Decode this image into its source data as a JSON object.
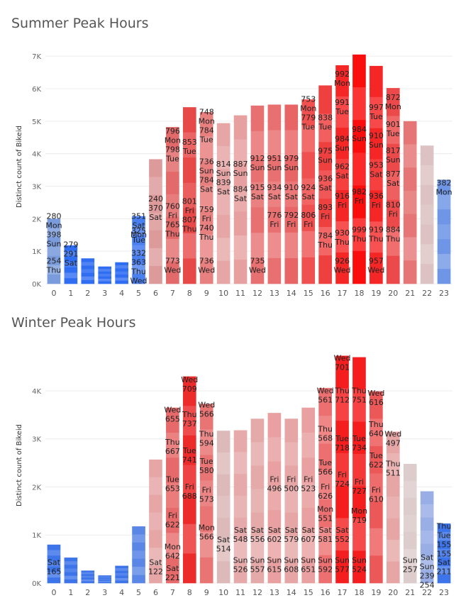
{
  "charts": [
    {
      "title": "Summer Peak Hours",
      "ylabel": "Distinct count of Bikeid",
      "yticks": [
        "0K",
        "1K",
        "2K",
        "3K",
        "4K",
        "5K",
        "6K",
        "7K"
      ],
      "ymax": 7200
    },
    {
      "title": "Winter Peak Hours",
      "ylabel": "Distinct count of Bikeid",
      "yticks": [
        "0K",
        "1K",
        "2K",
        "3K",
        "4K"
      ],
      "ymax": 4900
    }
  ],
  "chart_data": [
    {
      "type": "bar",
      "stacked": true,
      "title": "Summer Peak Hours",
      "xlabel": "",
      "ylabel": "Distinct count of Bikeid",
      "ylim": [
        0,
        7200
      ],
      "categories": [
        "0",
        "1",
        "2",
        "3",
        "4",
        "5",
        "6",
        "7",
        "8",
        "9",
        "10",
        "11",
        "12",
        "13",
        "14",
        "15",
        "16",
        "17",
        "18",
        "19",
        "20",
        "21",
        "22",
        "23"
      ],
      "values": [
        2000,
        1180,
        780,
        530,
        660,
        2080,
        3830,
        4820,
        5430,
        5280,
        4940,
        5180,
        5480,
        5510,
        5510,
        5670,
        6100,
        6720,
        7050,
        6700,
        6020,
        5000,
        4250,
        3200
      ],
      "colors": [
        "#7b9cdc",
        "#2f6df2",
        "#2f6df2",
        "#2f6df2",
        "#2f6df2",
        "#4a7ff0",
        "#dd9a9a",
        "#e36a6a",
        "#e74848",
        "#e88080",
        "#e6a6a6",
        "#e7a0a0",
        "#e77070",
        "#e87070",
        "#e86565",
        "#ef5050",
        "#ef4040",
        "#f52626",
        "#fa0d0d",
        "#f52626",
        "#ec4a4a",
        "#e67676",
        "#dcc2c2",
        "#6f96e6"
      ],
      "annotations": [
        {
          "x": "0",
          "lines": [
            "280",
            "Mon",
            "398",
            "Sun"
          ],
          "y": 2000
        },
        {
          "x": "0",
          "lines": [
            "254",
            "Thu"
          ],
          "y": 620
        },
        {
          "x": "1",
          "lines": [
            "279",
            "291",
            "Sat"
          ],
          "y": 1120
        },
        {
          "x": "5",
          "lines": [
            "351",
            "Sat",
            "Mon"
          ],
          "y": 2000
        },
        {
          "x": "5",
          "lines": [
            "325",
            "Tue"
          ],
          "y": 1550
        },
        {
          "x": "5",
          "lines": [
            "332",
            "363",
            "Thu",
            "Wed"
          ],
          "y": 860
        },
        {
          "x": "6",
          "lines": [
            "240",
            "370",
            "Sat"
          ],
          "y": 2530
        },
        {
          "x": "7",
          "lines": [
            "796",
            "Mon",
            "798",
            "Tue"
          ],
          "y": 4620
        },
        {
          "x": "7",
          "lines": [
            "760",
            "Fri",
            "765",
            "Thu"
          ],
          "y": 2300
        },
        {
          "x": "7",
          "lines": [
            "773",
            "Wed"
          ],
          "y": 620
        },
        {
          "x": "8",
          "lines": [
            "853",
            "Tue"
          ],
          "y": 4280
        },
        {
          "x": "8",
          "lines": [
            "801",
            "Fri",
            "807",
            "Thu"
          ],
          "y": 2460
        },
        {
          "x": "9",
          "lines": [
            "748",
            "Mon",
            "784",
            "Tue"
          ],
          "y": 5200
        },
        {
          "x": "9",
          "lines": [
            "736",
            "Sun",
            "784",
            "Sat"
          ],
          "y": 3680
        },
        {
          "x": "9",
          "lines": [
            "759",
            "Fri",
            "740",
            "Thu"
          ],
          "y": 2200
        },
        {
          "x": "9",
          "lines": [
            "736",
            "Wed"
          ],
          "y": 620
        },
        {
          "x": "10",
          "lines": [
            "814",
            "Sun",
            "839",
            "Sat"
          ],
          "y": 3600
        },
        {
          "x": "11",
          "lines": [
            "887",
            "Sun"
          ],
          "y": 3600
        },
        {
          "x": "11",
          "lines": [
            "884",
            "Sat"
          ],
          "y": 2830
        },
        {
          "x": "12",
          "lines": [
            "912",
            "Sun"
          ],
          "y": 3770
        },
        {
          "x": "12",
          "lines": [
            "915",
            "Sat"
          ],
          "y": 2880
        },
        {
          "x": "12",
          "lines": [
            "735",
            "Wed"
          ],
          "y": 620
        },
        {
          "x": "13",
          "lines": [
            "951",
            "Sun"
          ],
          "y": 3770
        },
        {
          "x": "13",
          "lines": [
            "934",
            "Sat"
          ],
          "y": 2880
        },
        {
          "x": "13",
          "lines": [
            "776",
            "Fri"
          ],
          "y": 2030
        },
        {
          "x": "14",
          "lines": [
            "979",
            "Sun"
          ],
          "y": 3770
        },
        {
          "x": "14",
          "lines": [
            "910",
            "Sat"
          ],
          "y": 2880
        },
        {
          "x": "14",
          "lines": [
            "792",
            "Fri"
          ],
          "y": 2030
        },
        {
          "x": "15",
          "lines": [
            "753",
            "Mon",
            "779",
            "Tue"
          ],
          "y": 5600
        },
        {
          "x": "15",
          "lines": [
            "924",
            "Sat"
          ],
          "y": 2880
        },
        {
          "x": "15",
          "lines": [
            "806",
            "Fri"
          ],
          "y": 2030
        },
        {
          "x": "16",
          "lines": [
            "838",
            "Tue"
          ],
          "y": 5030
        },
        {
          "x": "16",
          "lines": [
            "975",
            "Sun"
          ],
          "y": 4000
        },
        {
          "x": "16",
          "lines": [
            "936",
            "Sat"
          ],
          "y": 3150
        },
        {
          "x": "16",
          "lines": [
            "893",
            "Fri"
          ],
          "y": 2270
        },
        {
          "x": "16",
          "lines": [
            "784",
            "Thu"
          ],
          "y": 1400
        },
        {
          "x": "17",
          "lines": [
            "992",
            "Mon"
          ],
          "y": 6370
        },
        {
          "x": "17",
          "lines": [
            "991",
            "Tue"
          ],
          "y": 5500
        },
        {
          "x": "17",
          "lines": [
            "984",
            "Sun"
          ],
          "y": 4370
        },
        {
          "x": "17",
          "lines": [
            "962",
            "Sat"
          ],
          "y": 3520
        },
        {
          "x": "17",
          "lines": [
            "916",
            "Fri"
          ],
          "y": 2620
        },
        {
          "x": "17",
          "lines": [
            "930",
            "Thu"
          ],
          "y": 1480
        },
        {
          "x": "17",
          "lines": [
            "926",
            "Wed"
          ],
          "y": 620
        },
        {
          "x": "18",
          "lines": [
            "984",
            "Sun"
          ],
          "y": 4670
        },
        {
          "x": "18",
          "lines": [
            "982",
            "Fri"
          ],
          "y": 2750
        },
        {
          "x": "18",
          "lines": [
            "999",
            "Thu"
          ],
          "y": 1580
        },
        {
          "x": "19",
          "lines": [
            "997",
            "Tue"
          ],
          "y": 5350
        },
        {
          "x": "19",
          "lines": [
            "910",
            "Sun"
          ],
          "y": 4470
        },
        {
          "x": "19",
          "lines": [
            "953",
            "Sat"
          ],
          "y": 3570
        },
        {
          "x": "19",
          "lines": [
            "936",
            "Fri"
          ],
          "y": 2620
        },
        {
          "x": "19",
          "lines": [
            "919",
            "Thu"
          ],
          "y": 1580
        },
        {
          "x": "19",
          "lines": [
            "957",
            "Wed"
          ],
          "y": 620
        },
        {
          "x": "20",
          "lines": [
            "872",
            "Mon"
          ],
          "y": 5650
        },
        {
          "x": "20",
          "lines": [
            "901",
            "Tue"
          ],
          "y": 4820
        },
        {
          "x": "20",
          "lines": [
            "817",
            "Sun"
          ],
          "y": 4020
        },
        {
          "x": "20",
          "lines": [
            "877",
            "Sat"
          ],
          "y": 3290
        },
        {
          "x": "20",
          "lines": [
            "810",
            "Fri"
          ],
          "y": 2350
        },
        {
          "x": "20",
          "lines": [
            "884",
            "Thu"
          ],
          "y": 1580
        },
        {
          "x": "23",
          "lines": [
            "382",
            "Mon"
          ],
          "y": 3020
        }
      ]
    },
    {
      "type": "bar",
      "stacked": true,
      "title": "Winter Peak Hours",
      "xlabel": "",
      "ylabel": "Distinct count of Bikeid",
      "ylim": [
        0,
        4900
      ],
      "categories": [
        "0",
        "1",
        "2",
        "3",
        "4",
        "5",
        "6",
        "7",
        "8",
        "9",
        "10",
        "11",
        "12",
        "13",
        "14",
        "15",
        "16",
        "17",
        "18",
        "19",
        "20",
        "21",
        "22",
        "23"
      ],
      "values": [
        800,
        530,
        260,
        160,
        360,
        1180,
        2570,
        3650,
        4300,
        3730,
        3170,
        3180,
        3420,
        3540,
        3420,
        3650,
        4060,
        4730,
        4700,
        3990,
        3150,
        2480,
        1910,
        1240
      ],
      "colors": [
        "#3d74ea",
        "#3d74ea",
        "#3d74ea",
        "#3d74ea",
        "#3d74ea",
        "#5a86e6",
        "#e6a6a6",
        "#e76a6a",
        "#ec2b2b",
        "#e87474",
        "#ddbaba",
        "#e6aaaa",
        "#e4aaaa",
        "#e8a0a0",
        "#e6a6a6",
        "#e8a0a0",
        "#ec7070",
        "#f41e1e",
        "#f41e1e",
        "#ec5858",
        "#e6a6a6",
        "#ddcccc",
        "#9aaee6",
        "#3d74ea"
      ],
      "annotations": [
        {
          "x": "0",
          "lines": [
            "Sat",
            "165"
          ],
          "y": 380
        },
        {
          "x": "6",
          "lines": [
            "Sat",
            "122"
          ],
          "y": 380
        },
        {
          "x": "7",
          "lines": [
            "Wed",
            "655"
          ],
          "y": 3550
        },
        {
          "x": "7",
          "lines": [
            "Thu",
            "667"
          ],
          "y": 2880
        },
        {
          "x": "7",
          "lines": [
            "Tue",
            "653"
          ],
          "y": 2100
        },
        {
          "x": "7",
          "lines": [
            "Fri",
            "622"
          ],
          "y": 1350
        },
        {
          "x": "7",
          "lines": [
            "Mon",
            "642"
          ],
          "y": 700
        },
        {
          "x": "7",
          "lines": [
            "Sat",
            "221"
          ],
          "y": 250
        },
        {
          "x": "8",
          "lines": [
            "Wed",
            "709"
          ],
          "y": 4180
        },
        {
          "x": "8",
          "lines": [
            "Thu",
            "737"
          ],
          "y": 3450
        },
        {
          "x": "8",
          "lines": [
            "Tue",
            "741"
          ],
          "y": 2700
        },
        {
          "x": "8",
          "lines": [
            "Fri",
            "688"
          ],
          "y": 1950
        },
        {
          "x": "9",
          "lines": [
            "Wed",
            "566"
          ],
          "y": 3650
        },
        {
          "x": "9",
          "lines": [
            "Thu",
            "594"
          ],
          "y": 3050
        },
        {
          "x": "9",
          "lines": [
            "Tue",
            "580"
          ],
          "y": 2480
        },
        {
          "x": "9",
          "lines": [
            "Fri",
            "573"
          ],
          "y": 1880
        },
        {
          "x": "9",
          "lines": [
            "Mon",
            "566"
          ],
          "y": 1100
        },
        {
          "x": "10",
          "lines": [
            "Sat",
            "514"
          ],
          "y": 850
        },
        {
          "x": "11",
          "lines": [
            "Sat",
            "548"
          ],
          "y": 1050
        },
        {
          "x": "11",
          "lines": [
            "Sun",
            "526"
          ],
          "y": 420
        },
        {
          "x": "12",
          "lines": [
            "Sat",
            "556"
          ],
          "y": 1050
        },
        {
          "x": "12",
          "lines": [
            "Sun",
            "557"
          ],
          "y": 420
        },
        {
          "x": "13",
          "lines": [
            "Fri",
            "496"
          ],
          "y": 2100
        },
        {
          "x": "13",
          "lines": [
            "Sat",
            "602"
          ],
          "y": 1050
        },
        {
          "x": "13",
          "lines": [
            "Sun",
            "615"
          ],
          "y": 420
        },
        {
          "x": "14",
          "lines": [
            "Fri",
            "500"
          ],
          "y": 2100
        },
        {
          "x": "14",
          "lines": [
            "Sat",
            "579"
          ],
          "y": 1050
        },
        {
          "x": "14",
          "lines": [
            "Sun",
            "608"
          ],
          "y": 420
        },
        {
          "x": "15",
          "lines": [
            "Fri",
            "523"
          ],
          "y": 2100
        },
        {
          "x": "15",
          "lines": [
            "Sat",
            "607"
          ],
          "y": 1050
        },
        {
          "x": "15",
          "lines": [
            "Sun",
            "651"
          ],
          "y": 420
        },
        {
          "x": "16",
          "lines": [
            "Wed",
            "561"
          ],
          "y": 3950
        },
        {
          "x": "16",
          "lines": [
            "Thu",
            "568"
          ],
          "y": 3150
        },
        {
          "x": "16",
          "lines": [
            "Tue",
            "566"
          ],
          "y": 2450
        },
        {
          "x": "16",
          "lines": [
            "Fri",
            "626"
          ],
          "y": 1950
        },
        {
          "x": "16",
          "lines": [
            "Mon",
            "551"
          ],
          "y": 1480
        },
        {
          "x": "16",
          "lines": [
            "Sat",
            "581"
          ],
          "y": 1050
        },
        {
          "x": "16",
          "lines": [
            "Sun",
            "592"
          ],
          "y": 420
        },
        {
          "x": "17",
          "lines": [
            "Wed",
            "701"
          ],
          "y": 4630
        },
        {
          "x": "17",
          "lines": [
            "Thu",
            "712"
          ],
          "y": 3950
        },
        {
          "x": "17",
          "lines": [
            "Tue",
            "718"
          ],
          "y": 2950
        },
        {
          "x": "17",
          "lines": [
            "Fri",
            "724"
          ],
          "y": 2200
        },
        {
          "x": "17",
          "lines": [
            "Sat",
            "552"
          ],
          "y": 1050
        },
        {
          "x": "17",
          "lines": [
            "Sun",
            "577"
          ],
          "y": 420
        },
        {
          "x": "18",
          "lines": [
            "Thu",
            "751"
          ],
          "y": 3950
        },
        {
          "x": "18",
          "lines": [
            "Tue",
            "734"
          ],
          "y": 2950
        },
        {
          "x": "18",
          "lines": [
            "Fri",
            "727"
          ],
          "y": 2050
        },
        {
          "x": "18",
          "lines": [
            "Mon",
            "719"
          ],
          "y": 1450
        },
        {
          "x": "18",
          "lines": [
            "Sun",
            "524"
          ],
          "y": 420
        },
        {
          "x": "19",
          "lines": [
            "Wed",
            "616"
          ],
          "y": 3900
        },
        {
          "x": "19",
          "lines": [
            "Thu",
            "640"
          ],
          "y": 3250
        },
        {
          "x": "19",
          "lines": [
            "Tue",
            "622"
          ],
          "y": 2600
        },
        {
          "x": "19",
          "lines": [
            "Fri",
            "610"
          ],
          "y": 1880
        },
        {
          "x": "20",
          "lines": [
            "Wed",
            "497"
          ],
          "y": 3050
        },
        {
          "x": "20",
          "lines": [
            "Thu",
            "511"
          ],
          "y": 2430
        },
        {
          "x": "21",
          "lines": [
            "Sun",
            "257"
          ],
          "y": 420
        },
        {
          "x": "22",
          "lines": [
            "Sat",
            "Sun",
            "239",
            "254"
          ],
          "y": 480
        },
        {
          "x": "23",
          "lines": [
            "Thu",
            "Tue",
            "155",
            "155"
          ],
          "y": 1130
        },
        {
          "x": "23",
          "lines": [
            "Sat",
            "211"
          ],
          "y": 380
        }
      ]
    }
  ]
}
